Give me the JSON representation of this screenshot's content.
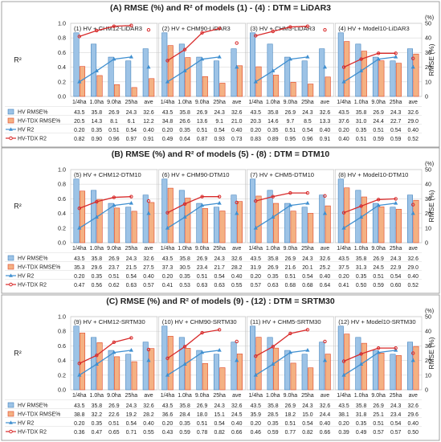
{
  "chart_data": [
    {
      "type": "bar",
      "title": "(A) RMSE (%) and R² of models (1) - (4) : DTM = LiDAR3",
      "ylabel_left": "R²",
      "ylabel_right": "RMSE (%)",
      "right_unit": "(%)",
      "ylim_left": [
        0,
        1.0
      ],
      "ylim_right": [
        0,
        50
      ],
      "left_ticks": [
        "0.0",
        "0.2",
        "0.4",
        "0.6",
        "0.8",
        "1.0"
      ],
      "right_ticks": [
        "0",
        "10",
        "20",
        "30",
        "40",
        "50"
      ],
      "categories": [
        "1/4ha",
        "1.0ha",
        "9.0ha",
        "25ha",
        "ave"
      ],
      "legend": [
        "HV RMSE%",
        "HV-TDX RMSE%",
        "HV R2",
        "HV-TDX R2"
      ],
      "panels": [
        {
          "title": "(1) HV + CHM12-LiDAR3",
          "hv_rmse": [
            43.5,
            35.8,
            26.9,
            24.3,
            32.6
          ],
          "tdx_rmse": [
            20.5,
            14.3,
            8.1,
            6.1,
            12.2
          ],
          "hv_r2": [
            0.2,
            0.35,
            0.51,
            0.54,
            0.4
          ],
          "tdx_r2": [
            0.82,
            0.9,
            0.96,
            0.97,
            0.91
          ]
        },
        {
          "title": "(2) HV + CHM90-LiDAR3",
          "hv_rmse": [
            43.5,
            35.8,
            26.9,
            24.3,
            32.6
          ],
          "tdx_rmse": [
            34.8,
            26.6,
            13.6,
            9.1,
            21.0
          ],
          "hv_r2": [
            0.2,
            0.35,
            0.51,
            0.54,
            0.4
          ],
          "tdx_r2": [
            0.49,
            0.64,
            0.87,
            0.93,
            0.73
          ]
        },
        {
          "title": "(3) HV + CHM5-LiDAR3",
          "hv_rmse": [
            43.5,
            35.8,
            26.9,
            24.3,
            32.6
          ],
          "tdx_rmse": [
            20.3,
            14.6,
            9.7,
            8.5,
            13.3
          ],
          "hv_r2": [
            0.2,
            0.35,
            0.51,
            0.54,
            0.4
          ],
          "tdx_r2": [
            0.83,
            0.89,
            0.95,
            0.96,
            0.91
          ]
        },
        {
          "title": "(4) HV + Model10-LiDAR3",
          "hv_rmse": [
            43.5,
            35.8,
            26.9,
            24.3,
            32.6
          ],
          "tdx_rmse": [
            37.6,
            31.0,
            24.4,
            22.7,
            29.0
          ],
          "hv_r2": [
            0.2,
            0.35,
            0.51,
            0.54,
            0.4
          ],
          "tdx_r2": [
            0.4,
            0.51,
            0.59,
            0.59,
            0.52
          ]
        }
      ]
    },
    {
      "type": "bar",
      "title": "(B) RMSE (%) and R² of models (5) - (8) : DTM = DTM10",
      "ylabel_left": "R²",
      "ylabel_right": "RMSE (%)",
      "right_unit": "(%)",
      "ylim_left": [
        0,
        1.0
      ],
      "ylim_right": [
        0,
        50
      ],
      "left_ticks": [
        "0.0",
        "0.2",
        "0.4",
        "0.6",
        "0.8",
        "1.0"
      ],
      "right_ticks": [
        "0",
        "10",
        "20",
        "30",
        "40",
        "50"
      ],
      "categories": [
        "1/4ha",
        "1.0ha",
        "9.0ha",
        "25ha",
        "ave"
      ],
      "legend": [
        "HV RMSE%",
        "HV-TDX RMSE%",
        "HV R2",
        "HV-TDX R2"
      ],
      "panels": [
        {
          "title": "(5) HV + CHM12-DTM10",
          "hv_rmse": [
            43.5,
            35.8,
            26.9,
            24.3,
            32.6
          ],
          "tdx_rmse": [
            35.3,
            29.6,
            23.7,
            21.5,
            27.5
          ],
          "hv_r2": [
            0.2,
            0.35,
            0.51,
            0.54,
            0.4
          ],
          "tdx_r2": [
            0.47,
            0.56,
            0.62,
            0.63,
            0.57
          ]
        },
        {
          "title": "(6) HV + CHM90-DTM10",
          "hv_rmse": [
            43.5,
            35.8,
            26.9,
            24.3,
            32.6
          ],
          "tdx_rmse": [
            37.3,
            30.5,
            23.4,
            21.7,
            28.2
          ],
          "hv_r2": [
            0.2,
            0.35,
            0.51,
            0.54,
            0.4
          ],
          "tdx_r2": [
            0.41,
            0.53,
            0.63,
            0.63,
            0.55
          ]
        },
        {
          "title": "(7) HV + CHM5-DTM10",
          "hv_rmse": [
            43.5,
            35.8,
            26.9,
            24.3,
            32.6
          ],
          "tdx_rmse": [
            31.9,
            26.9,
            21.6,
            20.1,
            25.2
          ],
          "hv_r2": [
            0.2,
            0.35,
            0.51,
            0.54,
            0.4
          ],
          "tdx_r2": [
            0.57,
            0.63,
            0.68,
            0.68,
            0.64
          ]
        },
        {
          "title": "(8) HV + Model10-DTM10",
          "hv_rmse": [
            43.5,
            35.8,
            26.9,
            24.3,
            32.6
          ],
          "tdx_rmse": [
            37.5,
            31.3,
            24.5,
            22.9,
            29.0
          ],
          "hv_r2": [
            0.2,
            0.35,
            0.51,
            0.54,
            0.4
          ],
          "tdx_r2": [
            0.41,
            0.5,
            0.59,
            0.6,
            0.52
          ]
        }
      ]
    },
    {
      "type": "bar",
      "title": "(C) RMSE (%) and R² of models (9) - (12) : DTM = SRTM30",
      "ylabel_left": "R²",
      "ylabel_right": "RMSE (%)",
      "right_unit": "(%)",
      "ylim_left": [
        0,
        1.0
      ],
      "ylim_right": [
        0,
        50
      ],
      "left_ticks": [
        "0.0",
        "0.2",
        "0.4",
        "0.6",
        "0.8",
        "1.0"
      ],
      "right_ticks": [
        "0",
        "10",
        "20",
        "30",
        "40",
        "50"
      ],
      "categories": [
        "1/4ha",
        "1.0ha",
        "9.0ha",
        "25ha",
        "ave"
      ],
      "legend": [
        "HV RMSE%",
        "HV-TDX RMSE%",
        "HV R2",
        "HV-TDX R2"
      ],
      "panels": [
        {
          "title": "(9) HV + CHM12-SRTM30",
          "hv_rmse": [
            43.5,
            35.8,
            26.9,
            24.3,
            32.6
          ],
          "tdx_rmse": [
            38.8,
            32.2,
            22.6,
            19.2,
            28.2
          ],
          "hv_r2": [
            0.2,
            0.35,
            0.51,
            0.54,
            0.4
          ],
          "tdx_r2": [
            0.36,
            0.47,
            0.65,
            0.71,
            0.55
          ]
        },
        {
          "title": "(10) HV + CHM90-SRTM30",
          "hv_rmse": [
            43.5,
            35.8,
            26.9,
            24.3,
            32.6
          ],
          "tdx_rmse": [
            36.6,
            28.4,
            18.0,
            15.1,
            24.5
          ],
          "hv_r2": [
            0.2,
            0.35,
            0.51,
            0.54,
            0.4
          ],
          "tdx_r2": [
            0.43,
            0.59,
            0.78,
            0.82,
            0.66
          ]
        },
        {
          "title": "(11) HV + CHM5-SRTM30",
          "hv_rmse": [
            43.5,
            35.8,
            26.9,
            24.3,
            32.6
          ],
          "tdx_rmse": [
            35.9,
            28.5,
            18.2,
            15.0,
            24.4
          ],
          "hv_r2": [
            0.2,
            0.35,
            0.51,
            0.54,
            0.4
          ],
          "tdx_r2": [
            0.46,
            0.59,
            0.77,
            0.82,
            0.66
          ]
        },
        {
          "title": "(12) HV + Model10-SRTM30",
          "hv_rmse": [
            43.5,
            35.8,
            26.9,
            24.3,
            32.6
          ],
          "tdx_rmse": [
            38.1,
            31.8,
            25.1,
            23.4,
            29.6
          ],
          "hv_r2": [
            0.2,
            0.35,
            0.51,
            0.54,
            0.4
          ],
          "tdx_r2": [
            0.39,
            0.49,
            0.57,
            0.57,
            0.5
          ]
        }
      ]
    }
  ],
  "colors": {
    "hv_bar_fill": "#9dc3e6",
    "hv_bar_stroke": "#2e75b6",
    "tdx_bar_fill": "#f4b183",
    "tdx_bar_stroke": "#e0462a",
    "hv_line": "#3f8fd0",
    "tdx_line": "#d82b2b",
    "grid": "#d9d9d9",
    "frame": "#8c8c8c"
  }
}
